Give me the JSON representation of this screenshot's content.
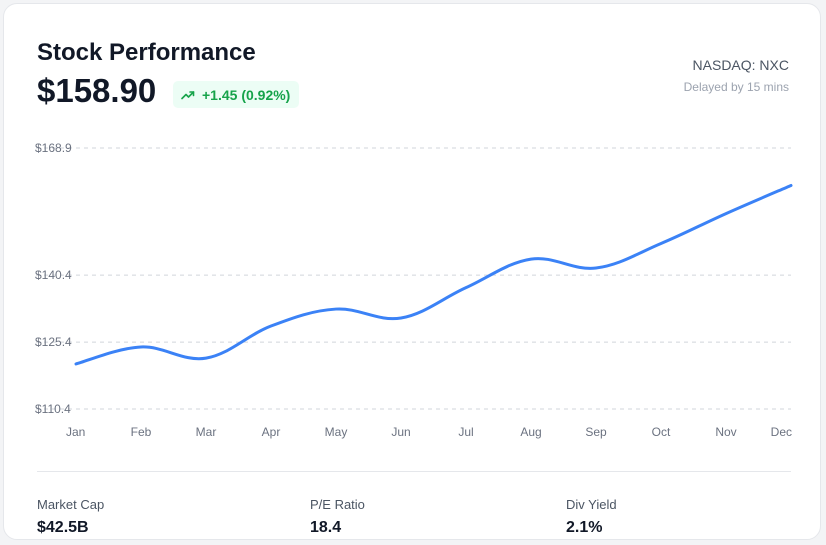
{
  "header": {
    "title": "Stock Performance",
    "price": "$158.90",
    "change": "+1.45 (0.92%)",
    "change_icon": "trending-up-icon",
    "ticker": "NASDAQ: NXC",
    "delay_note": "Delayed by 15 mins"
  },
  "colors": {
    "line": "#3b82f6",
    "positive": "#16a34a",
    "positive_bg": "#ecfdf5",
    "grid": "#d1d5db"
  },
  "chart_data": {
    "type": "line",
    "title": "",
    "xlabel": "",
    "ylabel": "",
    "categories": [
      "Jan",
      "Feb",
      "Mar",
      "Apr",
      "May",
      "Jun",
      "Jul",
      "Aug",
      "Sep",
      "Oct",
      "Nov",
      "Dec"
    ],
    "series": [
      {
        "values": [
          120.5,
          124.3,
          121.8,
          129.0,
          132.8,
          130.8,
          137.6,
          144.0,
          142.0,
          147.5,
          154.2,
          160.5
        ]
      }
    ],
    "y_ticks": [
      110.4,
      125.4,
      140.4,
      168.9
    ],
    "y_tick_labels": [
      "$110.4",
      "$125.4",
      "$140.4",
      "$168.9"
    ],
    "ylim": [
      110.4,
      168.9
    ],
    "grid": true,
    "grid_style": "dashed horizontal"
  },
  "stats": [
    {
      "label": "Market Cap",
      "value": "$42.5B"
    },
    {
      "label": "P/E Ratio",
      "value": "18.4"
    },
    {
      "label": "Div Yield",
      "value": "2.1%"
    }
  ]
}
